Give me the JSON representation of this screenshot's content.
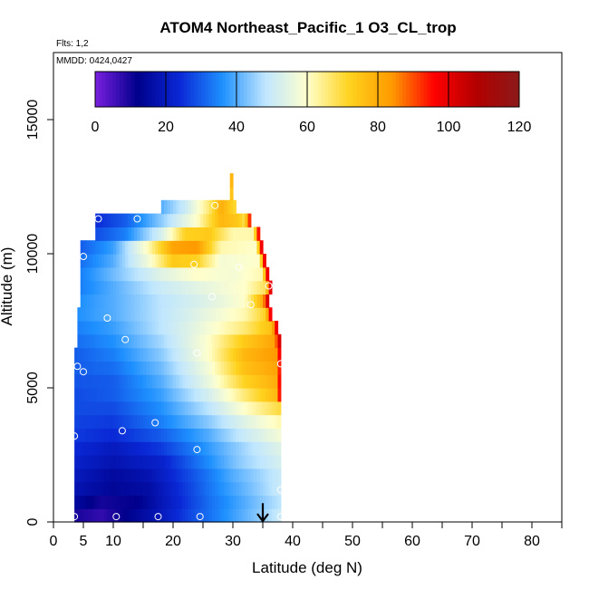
{
  "chart_data": {
    "type": "heatmap",
    "title": "ATOM4 Northeast_Pacific_1 O3_CL_trop",
    "flights_label": "Flts: 1,2",
    "dates_label": "MMDD: 0424,0427",
    "xlabel": "Latitude (deg N)",
    "ylabel": "Altitude (m)",
    "xlim": [
      0,
      85
    ],
    "ylim": [
      0,
      17500
    ],
    "x_ticks": [
      0,
      5,
      10,
      20,
      30,
      40,
      50,
      60,
      70,
      80
    ],
    "x_minor_ticks": [
      15,
      25,
      35,
      45,
      55,
      65,
      75,
      85
    ],
    "y_ticks": [
      0,
      5000,
      10000,
      15000
    ],
    "colorbar": {
      "min": 0,
      "max": 120,
      "ticks": [
        0,
        20,
        40,
        60,
        80,
        100,
        120
      ],
      "colors": [
        "#7a1fe0",
        "#00008b",
        "#0a28d6",
        "#1e90ff",
        "#bfe6ff",
        "#ffffcc",
        "#ffd21e",
        "#ff9a00",
        "#ff0000",
        "#b20000",
        "#8b1a1a"
      ]
    },
    "curtain": {
      "lat_start": 3.5,
      "lat_end": 38,
      "lat_step": 0.5,
      "alt_bin": 500,
      "rows": [
        {
          "alt": 0,
          "lat_min": 3.5,
          "lat_max": 38,
          "profile": [
            [
              3.5,
              10
            ],
            [
              8,
              7
            ],
            [
              12,
              12
            ],
            [
              17,
              18
            ],
            [
              23,
              28
            ],
            [
              30,
              38
            ],
            [
              35,
              45
            ],
            [
              38,
              50
            ]
          ]
        },
        {
          "alt": 500,
          "lat_min": 3.5,
          "lat_max": 38,
          "profile": [
            [
              3.5,
              15
            ],
            [
              8,
              10
            ],
            [
              14,
              12
            ],
            [
              20,
              22
            ],
            [
              26,
              32
            ],
            [
              32,
              40
            ],
            [
              38,
              48
            ]
          ]
        },
        {
          "alt": 1000,
          "lat_min": 3.5,
          "lat_max": 38,
          "profile": [
            [
              3.5,
              18
            ],
            [
              10,
              14
            ],
            [
              16,
              16
            ],
            [
              22,
              26
            ],
            [
              28,
              36
            ],
            [
              34,
              44
            ],
            [
              38,
              50
            ]
          ]
        },
        {
          "alt": 1500,
          "lat_min": 3.5,
          "lat_max": 38,
          "profile": [
            [
              3.5,
              20
            ],
            [
              10,
              15
            ],
            [
              16,
              18
            ],
            [
              24,
              30
            ],
            [
              30,
              40
            ],
            [
              35,
              46
            ],
            [
              38,
              50
            ]
          ]
        },
        {
          "alt": 2000,
          "lat_min": 3.5,
          "lat_max": 38,
          "profile": [
            [
              3.5,
              22
            ],
            [
              10,
              18
            ],
            [
              18,
              22
            ],
            [
              25,
              34
            ],
            [
              31,
              44
            ],
            [
              38,
              52
            ]
          ]
        },
        {
          "alt": 2500,
          "lat_min": 3.5,
          "lat_max": 38,
          "profile": [
            [
              3.5,
              24
            ],
            [
              10,
              20
            ],
            [
              18,
              26
            ],
            [
              25,
              36
            ],
            [
              32,
              46
            ],
            [
              38,
              54
            ]
          ]
        },
        {
          "alt": 3000,
          "lat_min": 3.5,
          "lat_max": 38,
          "profile": [
            [
              3.5,
              26
            ],
            [
              10,
              24
            ],
            [
              18,
              30
            ],
            [
              26,
              40
            ],
            [
              32,
              50
            ],
            [
              38,
              58
            ]
          ]
        },
        {
          "alt": 3500,
          "lat_min": 3.5,
          "lat_max": 38,
          "profile": [
            [
              3.5,
              27
            ],
            [
              10,
              26
            ],
            [
              18,
              34
            ],
            [
              26,
              44
            ],
            [
              32,
              54
            ],
            [
              38,
              62
            ]
          ]
        },
        {
          "alt": 4000,
          "lat_min": 3.5,
          "lat_max": 38,
          "profile": [
            [
              3.5,
              28
            ],
            [
              10,
              28
            ],
            [
              18,
              36
            ],
            [
              26,
              48
            ],
            [
              32,
              60
            ],
            [
              38,
              70
            ]
          ]
        },
        {
          "alt": 4500,
          "lat_min": 3.5,
          "lat_max": 38,
          "profile": [
            [
              3.5,
              28
            ],
            [
              10,
              30
            ],
            [
              18,
              38
            ],
            [
              26,
              52
            ],
            [
              32,
              66
            ],
            [
              37.5,
              78
            ],
            [
              38,
              110
            ]
          ]
        },
        {
          "alt": 5000,
          "lat_min": 3.5,
          "lat_max": 38,
          "profile": [
            [
              3.5,
              29
            ],
            [
              10,
              30
            ],
            [
              18,
              40
            ],
            [
              26,
              56
            ],
            [
              32,
              72
            ],
            [
              37.5,
              80
            ],
            [
              38,
              110
            ]
          ]
        },
        {
          "alt": 5500,
          "lat_min": 3.5,
          "lat_max": 38,
          "profile": [
            [
              3.5,
              30
            ],
            [
              10,
              32
            ],
            [
              18,
              42
            ],
            [
              26,
              58
            ],
            [
              32,
              76
            ],
            [
              37.5,
              82
            ],
            [
              38,
              105
            ]
          ]
        },
        {
          "alt": 6000,
          "lat_min": 3.5,
          "lat_max": 38,
          "profile": [
            [
              3.5,
              30
            ],
            [
              10,
              34
            ],
            [
              18,
              44
            ],
            [
              26,
              60
            ],
            [
              32,
              78
            ],
            [
              37.5,
              84
            ],
            [
              38,
              108
            ]
          ]
        },
        {
          "alt": 6500,
          "lat_min": 4,
          "lat_max": 38,
          "profile": [
            [
              4,
              32
            ],
            [
              10,
              36
            ],
            [
              18,
              46
            ],
            [
              26,
              60
            ],
            [
              32,
              74
            ],
            [
              37,
              82
            ],
            [
              38,
              108
            ]
          ]
        },
        {
          "alt": 7000,
          "lat_min": 4,
          "lat_max": 37.5,
          "profile": [
            [
              4,
              34
            ],
            [
              10,
              38
            ],
            [
              18,
              48
            ],
            [
              26,
              58
            ],
            [
              32,
              66
            ],
            [
              36.5,
              76
            ],
            [
              37.5,
              105
            ]
          ]
        },
        {
          "alt": 7500,
          "lat_min": 4,
          "lat_max": 36.5,
          "profile": [
            [
              4,
              36
            ],
            [
              10,
              40
            ],
            [
              18,
              48
            ],
            [
              26,
              56
            ],
            [
              32,
              62
            ],
            [
              35.5,
              72
            ],
            [
              36.5,
              105
            ]
          ]
        },
        {
          "alt": 8000,
          "lat_min": 4.5,
          "lat_max": 36,
          "profile": [
            [
              4.5,
              36
            ],
            [
              10,
              40
            ],
            [
              18,
              48
            ],
            [
              26,
              54
            ],
            [
              32,
              60
            ],
            [
              35,
              80
            ],
            [
              36,
              108
            ]
          ]
        },
        {
          "alt": 8500,
          "lat_min": 4.5,
          "lat_max": 36.5,
          "profile": [
            [
              4.5,
              34
            ],
            [
              10,
              40
            ],
            [
              18,
              50
            ],
            [
              26,
              56
            ],
            [
              32,
              60
            ],
            [
              35.5,
              68
            ],
            [
              36.5,
              110
            ]
          ]
        },
        {
          "alt": 9000,
          "lat_min": 4.5,
          "lat_max": 36,
          "profile": [
            [
              4.5,
              34
            ],
            [
              10,
              42
            ],
            [
              18,
              54
            ],
            [
              24,
              60
            ],
            [
              30,
              58
            ],
            [
              35,
              62
            ],
            [
              36,
              110
            ]
          ]
        },
        {
          "alt": 9500,
          "lat_min": 4.5,
          "lat_max": 35.5,
          "profile": [
            [
              4.5,
              32
            ],
            [
              10,
              40
            ],
            [
              16,
              58
            ],
            [
              20,
              74
            ],
            [
              24,
              72
            ],
            [
              28,
              58
            ],
            [
              34.5,
              60
            ],
            [
              35.5,
              110
            ]
          ]
        },
        {
          "alt": 10000,
          "lat_min": 4.5,
          "lat_max": 35,
          "profile": [
            [
              4.5,
              30
            ],
            [
              10,
              38
            ],
            [
              16,
              62
            ],
            [
              20,
              82
            ],
            [
              24,
              84
            ],
            [
              28,
              62
            ],
            [
              34,
              60
            ],
            [
              35,
              110
            ]
          ]
        },
        {
          "alt": 10500,
          "lat_min": 7,
          "lat_max": 34.5,
          "profile": [
            [
              7,
              28
            ],
            [
              12,
              34
            ],
            [
              18,
              52
            ],
            [
              22,
              72
            ],
            [
              26,
              74
            ],
            [
              30,
              62
            ],
            [
              33.5,
              62
            ],
            [
              34.5,
              105
            ]
          ]
        },
        {
          "alt": 11000,
          "lat_min": 7,
          "lat_max": 33,
          "profile": [
            [
              7,
              24
            ],
            [
              12,
              30
            ],
            [
              18,
              44
            ],
            [
              24,
              60
            ],
            [
              28,
              78
            ],
            [
              31,
              74
            ],
            [
              32,
              68
            ],
            [
              33,
              100
            ]
          ]
        },
        {
          "alt": 11500,
          "lat_min": 18,
          "lat_max": 30.5,
          "profile": [
            [
              18,
              40
            ],
            [
              22,
              50
            ],
            [
              26,
              66
            ],
            [
              28,
              80
            ],
            [
              30.5,
              70
            ]
          ]
        },
        {
          "alt": 12000,
          "lat_min": 29.5,
          "lat_max": 30,
          "profile": [
            [
              29.5,
              75
            ],
            [
              30,
              75
            ]
          ]
        },
        {
          "alt": 12500,
          "lat_min": 29.5,
          "lat_max": 30,
          "profile": [
            [
              29.5,
              78
            ],
            [
              30,
              78
            ]
          ]
        }
      ]
    },
    "markers": [
      [
        3.5,
        200
      ],
      [
        10.5,
        200
      ],
      [
        17.5,
        200
      ],
      [
        24.5,
        200
      ],
      [
        38,
        200
      ],
      [
        38,
        1200
      ],
      [
        3.5,
        3200
      ],
      [
        11.5,
        3400
      ],
      [
        17,
        3700
      ],
      [
        24,
        2700
      ],
      [
        4,
        5800
      ],
      [
        5,
        5600
      ],
      [
        24,
        6300
      ],
      [
        38,
        5900
      ],
      [
        12,
        6800
      ],
      [
        9,
        7600
      ],
      [
        33,
        8100
      ],
      [
        26.5,
        8400
      ],
      [
        36,
        8800
      ],
      [
        31,
        9500
      ],
      [
        23.5,
        9600
      ],
      [
        5,
        9900
      ],
      [
        7.5,
        11300
      ],
      [
        14,
        11300
      ],
      [
        27,
        11800
      ]
    ],
    "arrow": {
      "lat": 35,
      "alt_top": 700,
      "alt_bottom": 0
    }
  }
}
